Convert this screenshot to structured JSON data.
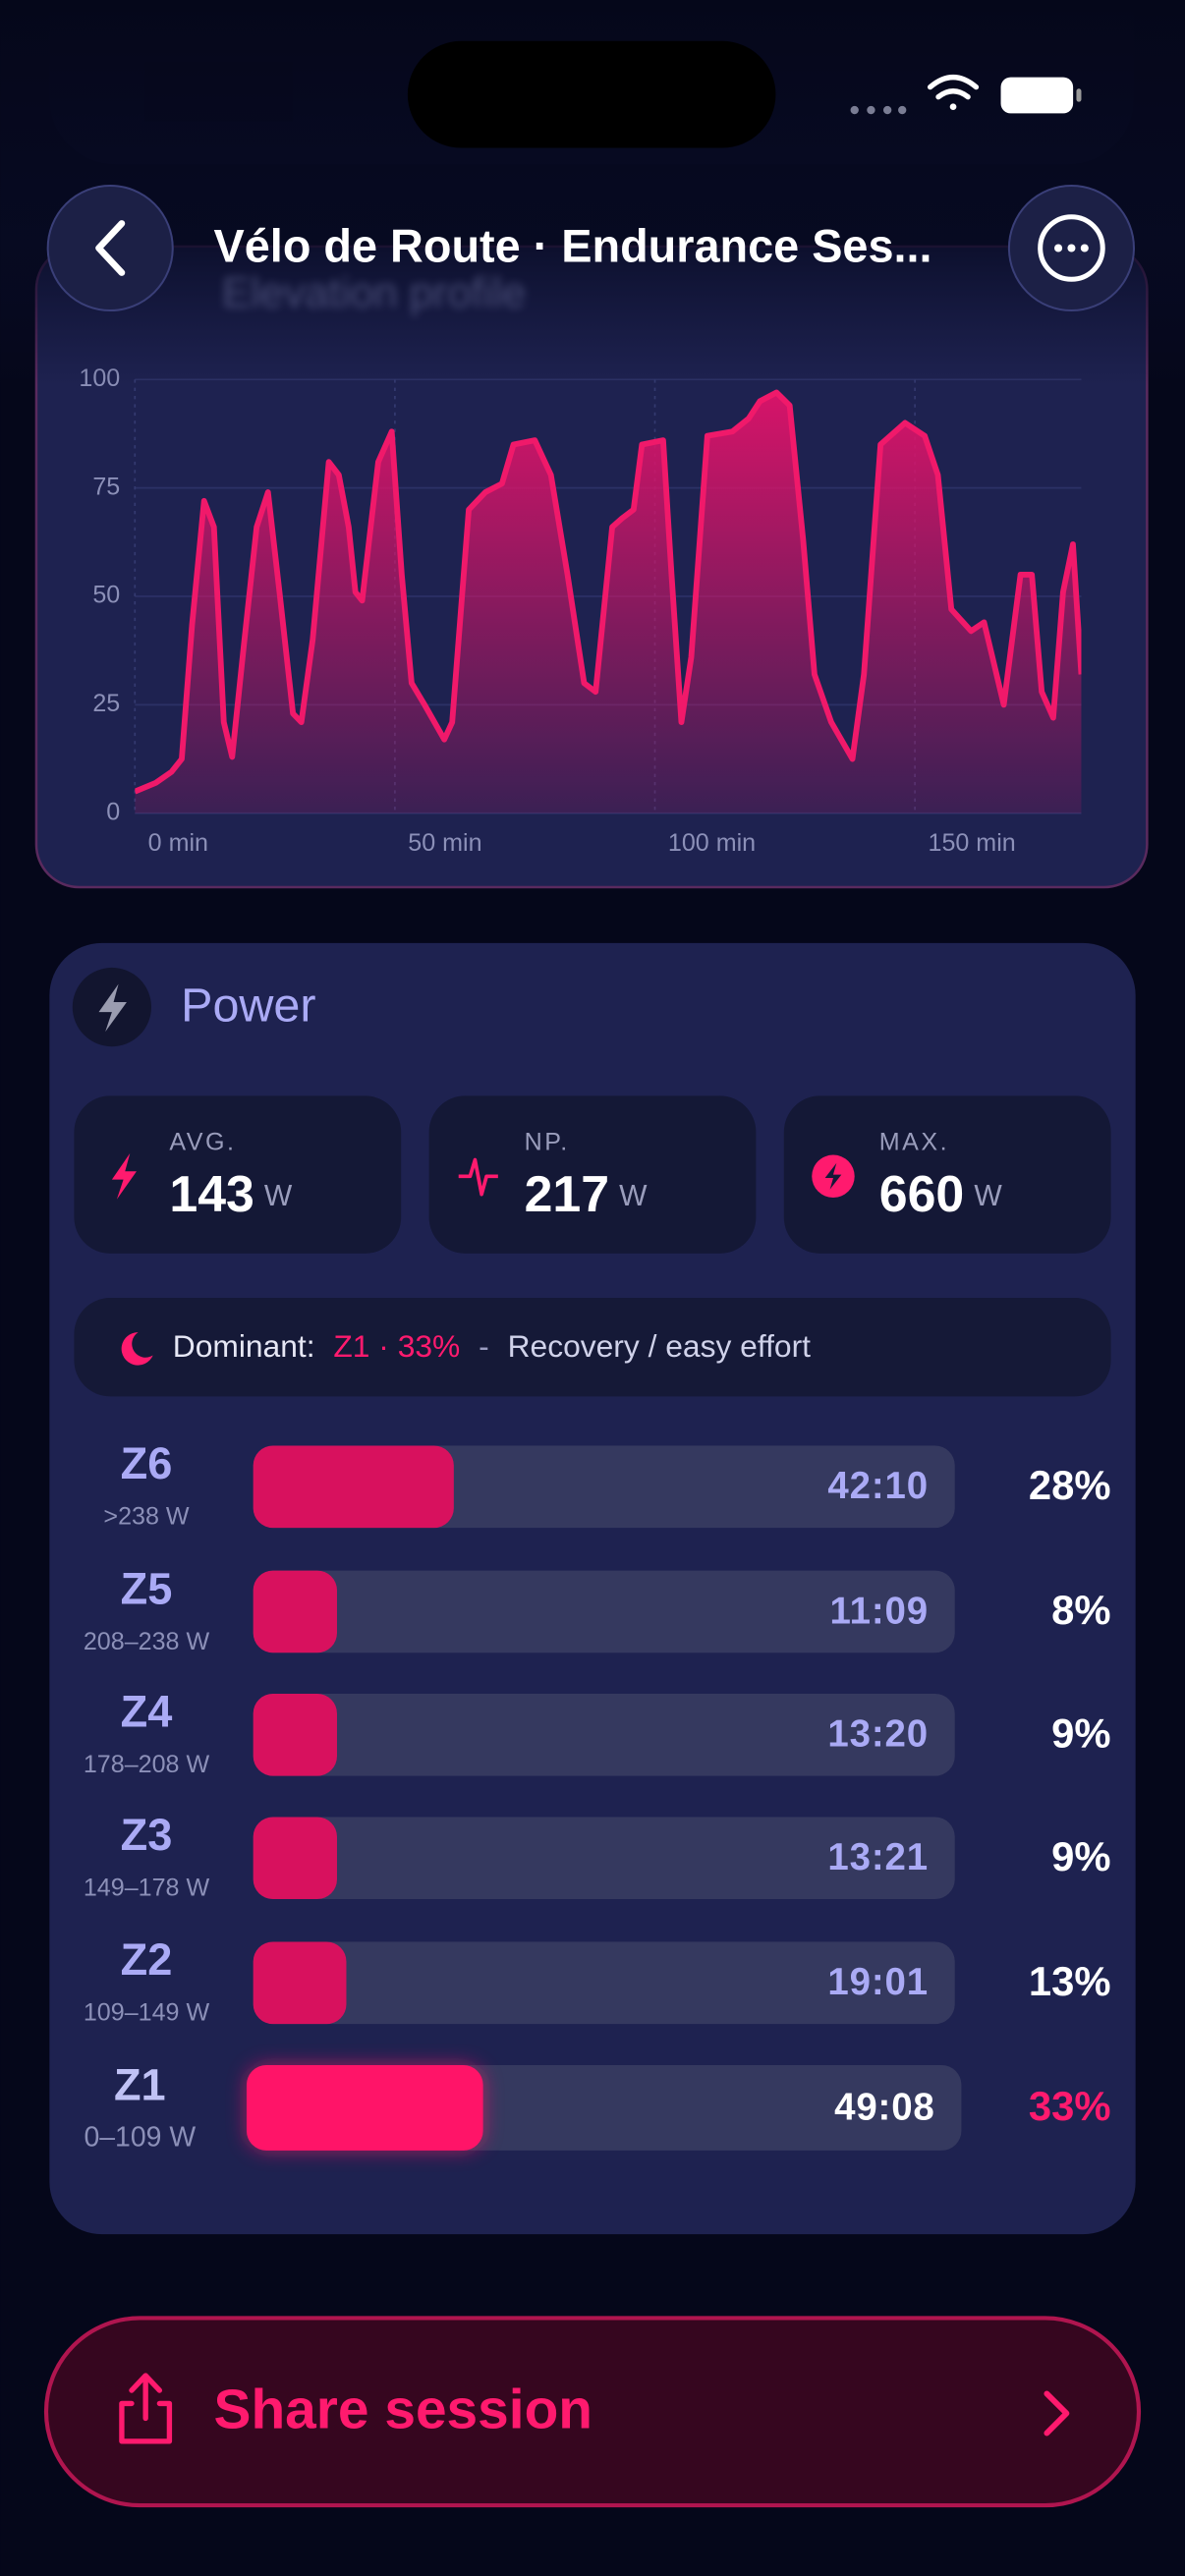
{
  "header": {
    "title": "Vélo de Route · Endurance Ses..."
  },
  "chart_data": {
    "type": "area",
    "title": "Elevation profile",
    "color": "#f0196a",
    "x": [
      0,
      4,
      7,
      9,
      11,
      13.3,
      15.2,
      17.1,
      18.7,
      20.9,
      23.4,
      25.6,
      27.8,
      30.4,
      32,
      34.2,
      37.3,
      39.2,
      41.1,
      42.4,
      43.7,
      46.8,
      49.4,
      51.3,
      53.2,
      55.7,
      59.5,
      61,
      64.2,
      67.4,
      70.6,
      72.8,
      76.9,
      80,
      83.2,
      86.4,
      88.6,
      91.8,
      93.7,
      95.9,
      97.5,
      101.6,
      103.2,
      105.1,
      107,
      110.1,
      114.9,
      118,
      120.2,
      123.4,
      125.9,
      128.5,
      130.7,
      133.9,
      138,
      140.2,
      143.4,
      148.1,
      151.9,
      154.4,
      157,
      160.8,
      163.3,
      164.9,
      167.1,
      170.3,
      172.5,
      174.4,
      176.6,
      178.5,
      180.4,
      182
    ],
    "values": [
      5,
      7,
      9.5,
      12.5,
      43.5,
      72,
      66,
      21,
      13,
      38,
      66,
      74,
      51,
      23,
      21,
      40,
      81,
      78,
      66,
      51,
      49,
      81,
      88,
      55,
      30,
      25,
      17,
      21,
      70,
      74,
      76,
      85,
      86,
      78,
      55,
      30,
      28,
      66,
      68,
      70,
      85,
      86,
      55,
      21,
      36,
      87,
      88,
      91,
      95,
      97,
      94,
      63,
      32,
      21,
      12.5,
      32,
      85,
      90,
      87,
      78,
      47,
      42,
      44,
      36,
      25,
      55,
      55,
      28,
      22,
      51,
      62,
      32
    ],
    "xlim": [
      0,
      182
    ],
    "ylim": [
      0,
      100
    ],
    "xticks": [
      {
        "value": 0,
        "label": "0 min"
      },
      {
        "value": 50,
        "label": "50 min"
      },
      {
        "value": 100,
        "label": "100 min"
      },
      {
        "value": 150,
        "label": "150 min"
      }
    ],
    "yticks": [
      0,
      25,
      50,
      75,
      100
    ],
    "grid": true
  },
  "power": {
    "title": "Power",
    "stats": [
      {
        "label": "AVG.",
        "value": 143,
        "unit": "W"
      },
      {
        "label": "NP.",
        "value": 217,
        "unit": "W"
      },
      {
        "label": "MAX.",
        "value": 660,
        "unit": "W"
      }
    ],
    "dominant": {
      "label": "Dominant:",
      "zone": "Z1 · 33%",
      "separator": "-",
      "description": "Recovery / easy effort"
    },
    "zones": [
      {
        "name": "Z6",
        "range": ">238 W",
        "time": "42:10",
        "percent": 28,
        "percent_label": "28%"
      },
      {
        "name": "Z5",
        "range": "208–238 W",
        "time": "11:09",
        "percent": 8,
        "percent_label": "8%"
      },
      {
        "name": "Z4",
        "range": "178–208 W",
        "time": "13:20",
        "percent": 9,
        "percent_label": "9%"
      },
      {
        "name": "Z3",
        "range": "149–178 W",
        "time": "13:21",
        "percent": 9,
        "percent_label": "9%"
      },
      {
        "name": "Z2",
        "range": "109–149 W",
        "time": "19:01",
        "percent": 13,
        "percent_label": "13%"
      },
      {
        "name": "Z1",
        "range": "0–109 W",
        "time": "49:08",
        "percent": 33,
        "percent_label": "33%"
      }
    ]
  },
  "share": {
    "label": "Share session"
  }
}
